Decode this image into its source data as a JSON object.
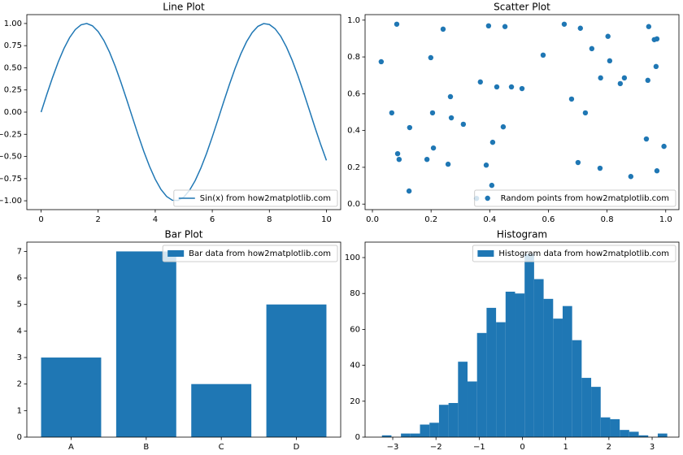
{
  "chart_data": [
    {
      "type": "line",
      "title": "Line Plot",
      "x": [
        0,
        0.2,
        0.4,
        0.6,
        0.8,
        1,
        1.2,
        1.4,
        1.6,
        1.8,
        2,
        2.2,
        2.4,
        2.6,
        2.8,
        3,
        3.2,
        3.4,
        3.6,
        3.8,
        4,
        4.2,
        4.4,
        4.6,
        4.8,
        5,
        5.2,
        5.4,
        5.6,
        5.8,
        6,
        6.2,
        6.4,
        6.6,
        6.8,
        7,
        7.2,
        7.4,
        7.6,
        7.8,
        8,
        8.2,
        8.4,
        8.6,
        8.8,
        9,
        9.2,
        9.4,
        9.6,
        9.8,
        10
      ],
      "series": [
        {
          "name": "Sin(x) from how2matplotlib.com",
          "color": "#1f77b4",
          "values": [
            0,
            0.199,
            0.389,
            0.565,
            0.717,
            0.841,
            0.932,
            0.985,
            1.0,
            0.974,
            0.909,
            0.808,
            0.675,
            0.516,
            0.335,
            0.141,
            -0.058,
            -0.256,
            -0.443,
            -0.612,
            -0.757,
            -0.872,
            -0.952,
            -0.994,
            -0.996,
            -0.959,
            -0.883,
            -0.773,
            -0.631,
            -0.465,
            -0.279,
            -0.083,
            0.117,
            0.312,
            0.494,
            0.657,
            0.794,
            0.899,
            0.968,
            0.999,
            0.989,
            0.941,
            0.855,
            0.734,
            0.585,
            0.412,
            0.223,
            0.025,
            -0.174,
            -0.366,
            -0.544
          ]
        }
      ],
      "xlim": [
        -0.5,
        10.5
      ],
      "ylim": [
        -1.1,
        1.1
      ],
      "xticks": [
        0,
        2,
        4,
        6,
        8,
        10
      ],
      "yticks": [
        {
          "value": -1,
          "label": "−1.00"
        },
        {
          "value": -0.75,
          "label": "−0.75"
        },
        {
          "value": -0.5,
          "label": "−0.50"
        },
        {
          "value": -0.25,
          "label": "−0.25"
        },
        {
          "value": 0,
          "label": "0.00"
        },
        {
          "value": 0.25,
          "label": "0.25"
        },
        {
          "value": 0.5,
          "label": "0.50"
        },
        {
          "value": 0.75,
          "label": "0.75"
        },
        {
          "value": 1,
          "label": "1.00"
        }
      ],
      "legend": "lower right"
    },
    {
      "type": "scatter",
      "title": "Scatter Plot",
      "x": [
        0.03,
        0.083,
        0.066,
        0.086,
        0.091,
        0.127,
        0.125,
        0.186,
        0.199,
        0.205,
        0.208,
        0.241,
        0.258,
        0.266,
        0.269,
        0.31,
        0.355,
        0.368,
        0.396,
        0.388,
        0.407,
        0.41,
        0.424,
        0.452,
        0.446,
        0.474,
        0.51,
        0.654,
        0.582,
        0.679,
        0.701,
        0.709,
        0.726,
        0.748,
        0.776,
        0.778,
        0.803,
        0.809,
        0.845,
        0.859,
        0.881,
        0.934,
        0.939,
        0.942,
        0.961,
        0.97,
        0.967,
        0.97,
        0.994
      ],
      "series": [
        {
          "name": "Random points from how2matplotlib.com",
          "color": "#1f77b4",
          "values": [
            0.774,
            0.978,
            0.496,
            0.274,
            0.243,
            0.416,
            0.071,
            0.243,
            0.796,
            0.496,
            0.305,
            0.951,
            0.217,
            0.584,
            0.469,
            0.434,
            0.031,
            0.664,
            0.969,
            0.212,
            0.102,
            0.336,
            0.637,
            0.965,
            0.42,
            0.637,
            0.628,
            0.978,
            0.81,
            0.571,
            0.226,
            0.956,
            0.496,
            0.845,
            0.195,
            0.686,
            0.912,
            0.779,
            0.655,
            0.686,
            0.15,
            0.354,
            0.673,
            0.965,
            0.894,
            0.898,
            0.748,
            0.181,
            0.314
          ]
        }
      ],
      "xlim": [
        -0.025,
        1.045
      ],
      "ylim": [
        -0.03,
        1.03
      ],
      "xticks": [
        {
          "value": 0,
          "label": "0.0"
        },
        0.2,
        0.4,
        0.6,
        0.8,
        {
          "value": 1,
          "label": "1.0"
        }
      ],
      "yticks": [
        {
          "value": 0,
          "label": "0.0"
        },
        0.2,
        0.4,
        0.6,
        0.8,
        {
          "value": 1,
          "label": "1.0"
        }
      ],
      "legend": "lower right"
    },
    {
      "type": "bar",
      "title": "Bar Plot",
      "categories": [
        "A",
        "B",
        "C",
        "D"
      ],
      "series": [
        {
          "name": "Bar data from how2matplotlib.com",
          "color": "#1f77b4",
          "values": [
            3,
            7,
            2,
            5
          ]
        }
      ],
      "ylim": [
        0,
        7.35
      ],
      "yticks": [
        0,
        1,
        2,
        3,
        4,
        5,
        6,
        7
      ],
      "legend": "upper right"
    },
    {
      "type": "histogram",
      "title": "Histogram",
      "bins": [
        -3.25,
        -3.03,
        -2.81,
        -2.59,
        -2.37,
        -2.15,
        -1.93,
        -1.71,
        -1.49,
        -1.27,
        -1.05,
        -0.83,
        -0.61,
        -0.39,
        -0.17,
        0.05,
        0.27,
        0.49,
        0.71,
        0.93,
        1.15,
        1.37,
        1.59,
        1.81,
        2.03,
        2.25,
        2.47,
        2.69,
        2.91,
        3.13,
        3.35
      ],
      "series": [
        {
          "name": "Histogram data from how2matplotlib.com",
          "color": "#1f77b4",
          "values": [
            1,
            0,
            2,
            2,
            7,
            8,
            18,
            19,
            42,
            31,
            58,
            72,
            64,
            81,
            80,
            102,
            88,
            77,
            66,
            73,
            54,
            33,
            28,
            11,
            10,
            4,
            3,
            1,
            0,
            2
          ]
        }
      ],
      "xlim": [
        -3.64,
        3.62
      ],
      "ylim": [
        0,
        108.6
      ],
      "xticks": [
        {
          "value": -3,
          "label": "−3"
        },
        {
          "value": -2,
          "label": "−2"
        },
        {
          "value": -1,
          "label": "−1"
        },
        0,
        1,
        2,
        3
      ],
      "yticks": [
        0,
        20,
        40,
        60,
        80,
        100
      ],
      "legend": "upper right"
    }
  ]
}
